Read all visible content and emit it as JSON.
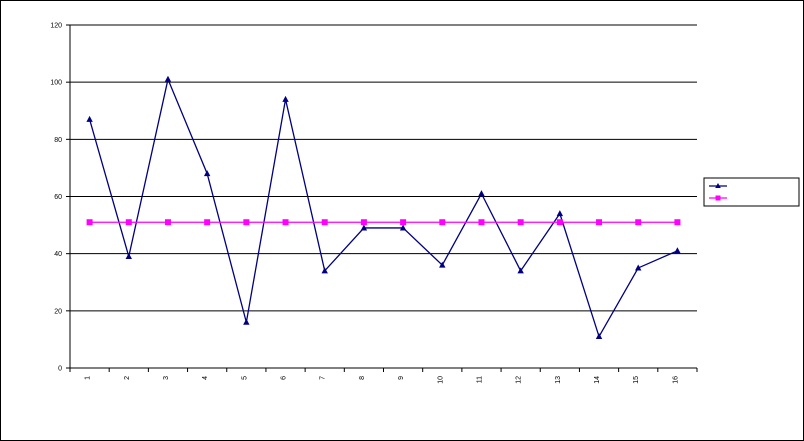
{
  "chart_data": {
    "type": "line",
    "title": "",
    "xlabel": "",
    "ylabel": "",
    "ylim": [
      0,
      120
    ],
    "yticks": [
      0,
      20,
      40,
      60,
      80,
      100,
      120
    ],
    "ytick_labels": [
      "0",
      "20",
      "40",
      "60",
      "80",
      "100",
      "120"
    ],
    "categories": [
      "1",
      "2",
      "3",
      "4",
      "5",
      "6",
      "7",
      "8",
      "9",
      "10",
      "11",
      "12",
      "13",
      "14",
      "15",
      "16"
    ],
    "grid": true,
    "legend_position": "right",
    "series": [
      {
        "name": "",
        "color": "#000080",
        "marker": "triangle",
        "values": [
          87,
          39,
          101,
          68,
          16,
          94,
          34,
          49,
          49,
          36,
          61,
          34,
          54,
          11,
          35,
          41
        ]
      },
      {
        "name": "",
        "color": "#ff00ff",
        "marker": "square",
        "values": [
          51,
          51,
          51,
          51,
          51,
          51,
          51,
          51,
          51,
          51,
          51,
          51,
          51,
          51,
          51,
          51
        ]
      }
    ],
    "watermark_color": "#b0b0b0"
  }
}
